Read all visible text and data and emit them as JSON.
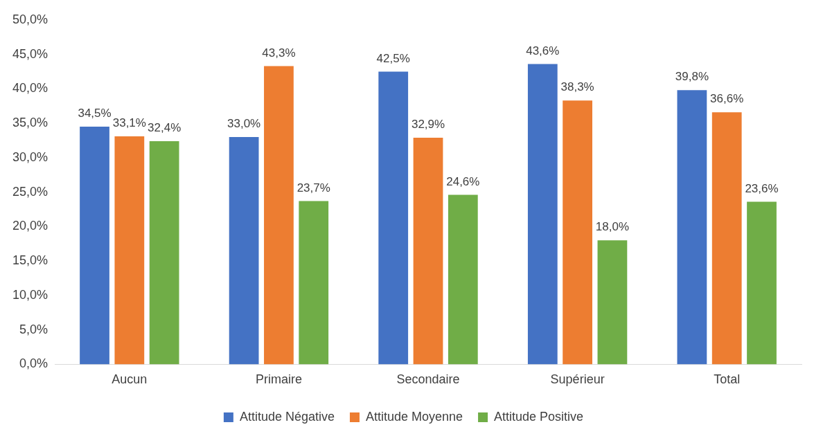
{
  "chart_data": {
    "type": "bar",
    "categories": [
      "Aucun",
      "Primaire",
      "Secondaire",
      "Supérieur",
      "Total"
    ],
    "series": [
      {
        "name": "Attitude Négative",
        "color": "#4472c4",
        "values": [
          34.5,
          33.0,
          42.5,
          43.6,
          39.8
        ],
        "value_labels": [
          "34,5%",
          "33,0%",
          "42,5%",
          "43,6%",
          "39,8%"
        ]
      },
      {
        "name": "Attitude Moyenne",
        "color": "#ed7d31",
        "values": [
          33.1,
          43.3,
          32.9,
          38.3,
          36.6
        ],
        "value_labels": [
          "33,1%",
          "43,3%",
          "32,9%",
          "38,3%",
          "36,6%"
        ]
      },
      {
        "name": "Attitude Positive",
        "color": "#70ad47",
        "values": [
          32.4,
          23.7,
          24.6,
          18.0,
          23.6
        ],
        "value_labels": [
          "32,4%",
          "23,7%",
          "24,6%",
          "18,0%",
          "23,6%"
        ]
      }
    ],
    "ylim": [
      0,
      50
    ],
    "yticks": [
      {
        "value": 0,
        "label": "0,0%"
      },
      {
        "value": 5,
        "label": "5,0%"
      },
      {
        "value": 10,
        "label": "10,0%"
      },
      {
        "value": 15,
        "label": "15,0%"
      },
      {
        "value": 20,
        "label": "20,0%"
      },
      {
        "value": 25,
        "label": "25,0%"
      },
      {
        "value": 30,
        "label": "30,0%"
      },
      {
        "value": 35,
        "label": "35,0%"
      },
      {
        "value": 40,
        "label": "40,0%"
      },
      {
        "value": 45,
        "label": "45,0%"
      },
      {
        "value": 50,
        "label": "50,0%"
      }
    ],
    "grid": false,
    "legend": "bottom"
  }
}
